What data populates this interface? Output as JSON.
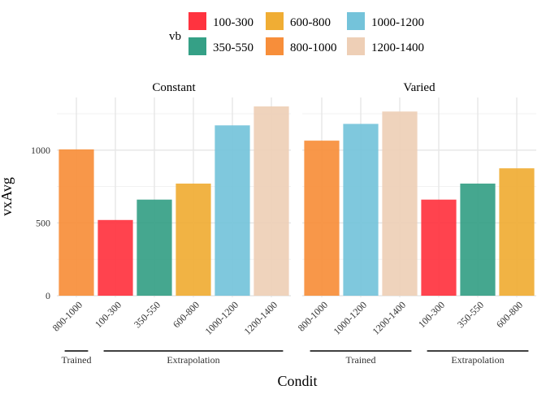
{
  "chart_data": {
    "type": "bar",
    "ylabel": "vxAvg",
    "xlabel": "Condit",
    "yticks": [
      0,
      500,
      1000
    ],
    "ylim": [
      0,
      1300
    ],
    "grid": true,
    "legend": {
      "title": "vb",
      "placement": "top",
      "entries": [
        {
          "label": "100-300",
          "color": "#FF333F"
        },
        {
          "label": "350-550",
          "color": "#35A086"
        },
        {
          "label": "600-800",
          "color": "#F0AD34"
        },
        {
          "label": "800-1000",
          "color": "#F78E3A"
        },
        {
          "label": "1000-1200",
          "color": "#74C3DA"
        },
        {
          "label": "1200-1400",
          "color": "#EECFB6"
        }
      ]
    },
    "facets": [
      {
        "title": "Constant",
        "categories": [
          "800-1000",
          "100-300",
          "350-550",
          "600-800",
          "1000-1200",
          "1200-1400"
        ],
        "values": [
          1005,
          520,
          660,
          770,
          1170,
          1300
        ],
        "groups": [
          {
            "label": "Trained",
            "span": [
              0,
              0
            ]
          },
          {
            "label": "Extrapolation",
            "span": [
              1,
              5
            ]
          }
        ]
      },
      {
        "title": "Varied",
        "categories": [
          "800-1000",
          "1000-1200",
          "1200-1400",
          "100-300",
          "350-550",
          "600-800"
        ],
        "values": [
          1065,
          1180,
          1265,
          660,
          770,
          875
        ],
        "groups": [
          {
            "label": "Trained",
            "span": [
              0,
              2
            ]
          },
          {
            "label": "Extrapolation",
            "span": [
              3,
              5
            ]
          }
        ]
      }
    ]
  }
}
